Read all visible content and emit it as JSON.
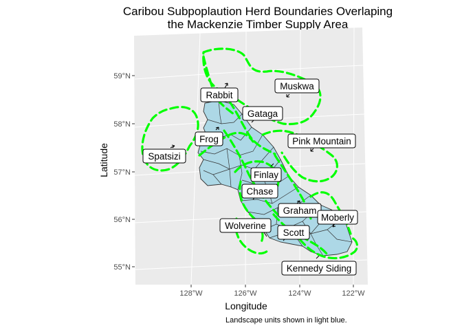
{
  "title_line1": "Caribou Subpoplaution Herd Boundaries Overlaping",
  "title_line2": "the Mackenzie Timber Supply Area",
  "x_axis_label": "Longitude",
  "y_axis_label": "Latitude",
  "x_ticks": [
    "128°W",
    "126°W",
    "124°W",
    "122°W"
  ],
  "y_ticks": [
    "59°N",
    "58°N",
    "57°N",
    "56°N",
    "55°N"
  ],
  "caption": "Landscape units shown in light blue.",
  "colors": {
    "panel": "#ebebeb",
    "grid": "#ffffff",
    "landscape_fill": "#add8e6",
    "landscape_stroke": "#333333",
    "herd_boundary": "#00ff00"
  },
  "herds": [
    {
      "name": "Rabbit"
    },
    {
      "name": "Muskwa"
    },
    {
      "name": "Gataga"
    },
    {
      "name": "Frog"
    },
    {
      "name": "Pink Mountain"
    },
    {
      "name": "Spatsizi"
    },
    {
      "name": "Finlay"
    },
    {
      "name": "Chase"
    },
    {
      "name": "Graham"
    },
    {
      "name": "Moberly"
    },
    {
      "name": "Wolverine"
    },
    {
      "name": "Scott"
    },
    {
      "name": "Kennedy Siding"
    }
  ]
}
